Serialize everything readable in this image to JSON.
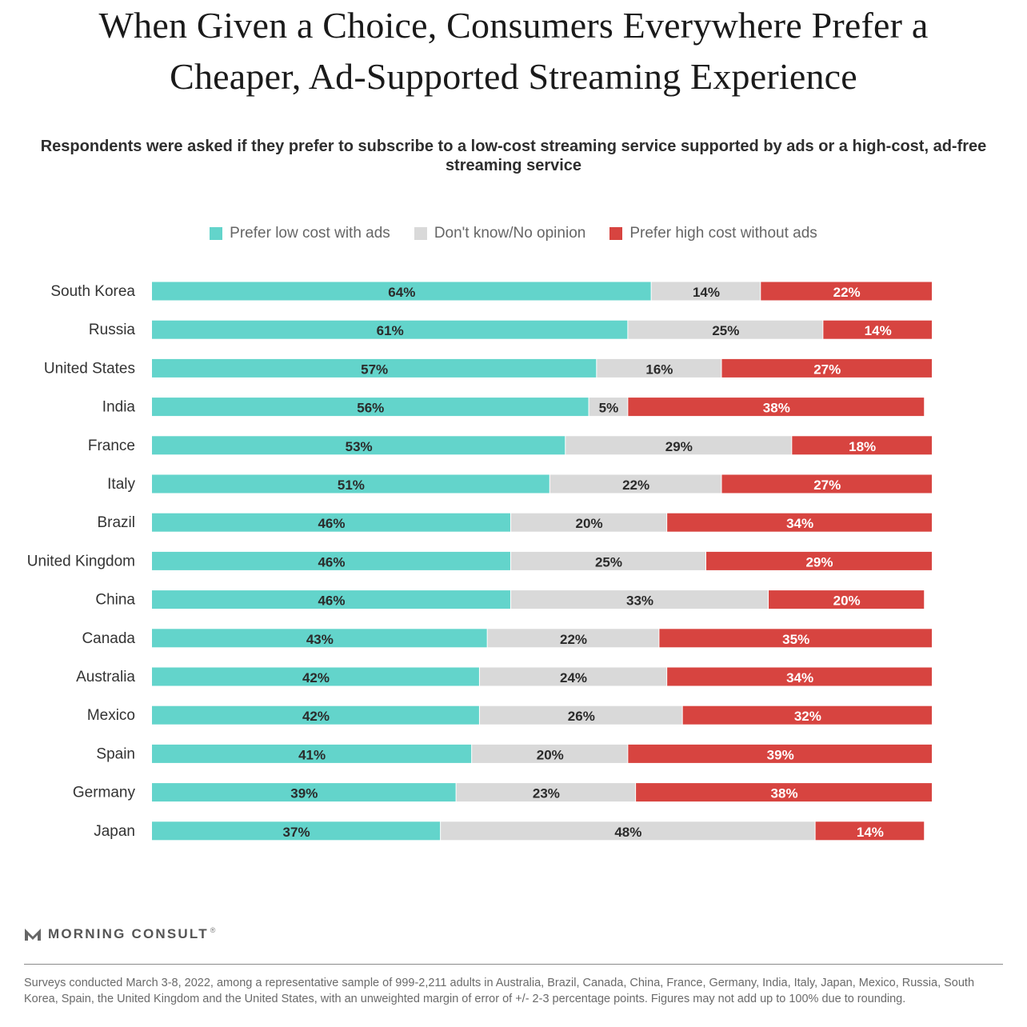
{
  "title_line1": "When Given a Choice, Consumers Everywhere Prefer a",
  "title_line2": "Cheaper, Ad-Supported Streaming Experience",
  "subtitle": "Respondents were asked if they prefer to subscribe to a low-cost streaming service supported by ads or a high-cost, ad-free streaming service",
  "brand": "MORNING CONSULT",
  "brand_mark": "®",
  "footnote": "Surveys conducted March 3-8, 2022, among a representative sample of 999-2,211 adults in Australia, Brazil, Canada, China, France, Germany, India, Italy, Japan, Mexico, Russia, South Korea, Spain, the United Kingdom and the United States, with an unweighted margin of error of +/- 2-3 percentage points. Figures may not add up to 100% due to rounding.",
  "colors": {
    "low_cost": "#63d4cb",
    "no_opinion": "#d9d9d9",
    "high_cost": "#d74440",
    "dark_text": "#2b2b2b",
    "light_text": "#ffffff"
  },
  "chart_data": {
    "type": "bar",
    "orientation": "horizontal",
    "stacked": true,
    "title": "When Given a Choice, Consumers Everywhere Prefer a Cheaper, Ad-Supported Streaming Experience",
    "subtitle": "Respondents were asked if they prefer to subscribe to a low-cost streaming service supported by ads or a high-cost, ad-free streaming service",
    "xlabel": "",
    "ylabel": "",
    "xlim": [
      0,
      100
    ],
    "grid": false,
    "legend_position": "top",
    "categories": [
      "South Korea",
      "Russia",
      "United States",
      "India",
      "France",
      "Italy",
      "Brazil",
      "United Kingdom",
      "China",
      "Canada",
      "Australia",
      "Mexico",
      "Spain",
      "Germany",
      "Japan"
    ],
    "series": [
      {
        "name": "Prefer low cost with ads",
        "values": [
          64,
          61,
          57,
          56,
          53,
          51,
          46,
          46,
          46,
          43,
          42,
          42,
          41,
          39,
          37
        ]
      },
      {
        "name": "Don't know/No opinion",
        "values": [
          14,
          25,
          16,
          5,
          29,
          22,
          20,
          25,
          33,
          22,
          24,
          26,
          20,
          23,
          48
        ]
      },
      {
        "name": "Prefer high cost without ads",
        "values": [
          22,
          14,
          27,
          38,
          18,
          27,
          34,
          29,
          20,
          35,
          34,
          32,
          39,
          38,
          14
        ]
      }
    ],
    "value_suffix": "%"
  }
}
